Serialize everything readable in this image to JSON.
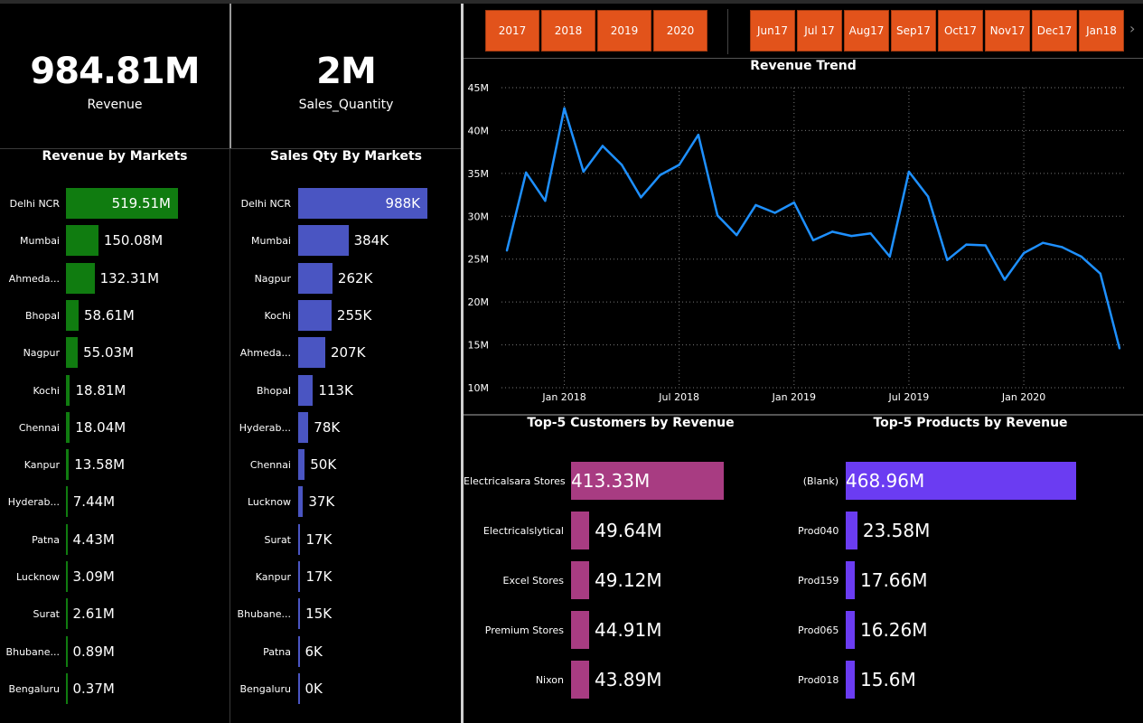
{
  "kpis": {
    "revenue": {
      "value": "984.81M",
      "label": "Revenue"
    },
    "sales_quantity": {
      "value": "2M",
      "label": "Sales_Quantity"
    }
  },
  "slicers": {
    "years": [
      "2017",
      "2018",
      "2019",
      "2020"
    ],
    "months": [
      {
        "top": "Jun",
        "bottom": "17"
      },
      {
        "top": "Jul 17",
        "bottom": ""
      },
      {
        "top": "Aug",
        "bottom": "17"
      },
      {
        "top": "Sep",
        "bottom": "17"
      },
      {
        "top": "Oct",
        "bottom": "17"
      },
      {
        "top": "Nov",
        "bottom": "17"
      },
      {
        "top": "Dec",
        "bottom": "17"
      },
      {
        "top": "Jan",
        "bottom": "18"
      }
    ],
    "next_icon": "chevron-right-icon"
  },
  "colors": {
    "revenue_bar": "#107c10",
    "qty_bar": "#4a55c2",
    "customer_bar": "#a83c82",
    "product_bar": "#6b3cf2",
    "trend_line": "#1e90ff",
    "slicer": "#e2531b"
  },
  "chart_data": [
    {
      "type": "bar",
      "orientation": "horizontal",
      "title": "Revenue by Markets",
      "categories": [
        "Delhi NCR",
        "Mumbai",
        "Ahmeda...",
        "Bhopal",
        "Nagpur",
        "Kochi",
        "Chennai",
        "Kanpur",
        "Hyderab...",
        "Patna",
        "Lucknow",
        "Surat",
        "Bhubane...",
        "Bengaluru"
      ],
      "values": [
        519.51,
        150.08,
        132.31,
        58.61,
        55.03,
        18.81,
        18.04,
        13.58,
        7.44,
        4.43,
        3.09,
        2.61,
        0.89,
        0.37
      ],
      "labels": [
        "519.51M",
        "150.08M",
        "132.31M",
        "58.61M",
        "55.03M",
        "18.81M",
        "18.04M",
        "13.58M",
        "7.44M",
        "4.43M",
        "3.09M",
        "2.61M",
        "0.89M",
        "0.37M"
      ],
      "unit": "M"
    },
    {
      "type": "bar",
      "orientation": "horizontal",
      "title": "Sales Qty By Markets",
      "categories": [
        "Delhi NCR",
        "Mumbai",
        "Nagpur",
        "Kochi",
        "Ahmeda...",
        "Bhopal",
        "Hyderab...",
        "Chennai",
        "Lucknow",
        "Surat",
        "Kanpur",
        "Bhubane...",
        "Patna",
        "Bengaluru"
      ],
      "values": [
        988,
        384,
        262,
        255,
        207,
        113,
        78,
        50,
        37,
        17,
        17,
        15,
        6,
        0
      ],
      "labels": [
        "988K",
        "384K",
        "262K",
        "255K",
        "207K",
        "113K",
        "78K",
        "50K",
        "37K",
        "17K",
        "17K",
        "15K",
        "6K",
        "0K"
      ],
      "unit": "K"
    },
    {
      "type": "line",
      "title": "Revenue Trend",
      "x": [
        "2017-10",
        "2017-11",
        "2017-12",
        "2018-01",
        "2018-02",
        "2018-03",
        "2018-04",
        "2018-05",
        "2018-06",
        "2018-07",
        "2018-08",
        "2018-09",
        "2018-10",
        "2018-11",
        "2018-12",
        "2019-01",
        "2019-02",
        "2019-03",
        "2019-04",
        "2019-05",
        "2019-06",
        "2019-07",
        "2019-08",
        "2019-09",
        "2019-10",
        "2019-11",
        "2019-12",
        "2020-01",
        "2020-02",
        "2020-03",
        "2020-04",
        "2020-05",
        "2020-06"
      ],
      "y": [
        26.0,
        35.1,
        31.8,
        42.6,
        35.2,
        38.2,
        36.0,
        32.2,
        34.8,
        36.0,
        39.5,
        30.1,
        27.8,
        31.3,
        30.4,
        31.6,
        27.2,
        28.2,
        27.7,
        28.0,
        25.3,
        35.2,
        32.3,
        24.9,
        26.7,
        26.6,
        22.6,
        25.7,
        26.9,
        26.4,
        25.3,
        23.3,
        14.6
      ],
      "x_ticks": [
        "Jan 2018",
        "Jul 2018",
        "Jan 2019",
        "Jul 2019",
        "Jan 2020"
      ],
      "y_ticks": [
        "45M",
        "40M",
        "35M",
        "30M",
        "25M",
        "20M",
        "15M",
        "10M"
      ],
      "ylim": [
        10,
        45
      ],
      "grid": true
    },
    {
      "type": "bar",
      "orientation": "horizontal",
      "title": "Top-5 Customers by Revenue",
      "categories": [
        "Electricalsara Stores",
        "Electricalslytical",
        "Excel Stores",
        "Premium Stores",
        "Nixon"
      ],
      "values": [
        413.33,
        49.64,
        49.12,
        44.91,
        43.89
      ],
      "labels": [
        "413.33M",
        "49.64M",
        "49.12M",
        "44.91M",
        "43.89M"
      ],
      "unit": "M"
    },
    {
      "type": "bar",
      "orientation": "horizontal",
      "title": "Top-5 Products by Revenue",
      "categories": [
        "(Blank)",
        "Prod040",
        "Prod159",
        "Prod065",
        "Prod018"
      ],
      "values": [
        468.96,
        23.58,
        17.66,
        16.26,
        15.6
      ],
      "labels": [
        "468.96M",
        "23.58M",
        "17.66M",
        "16.26M",
        "15.6M"
      ],
      "unit": "M"
    }
  ]
}
